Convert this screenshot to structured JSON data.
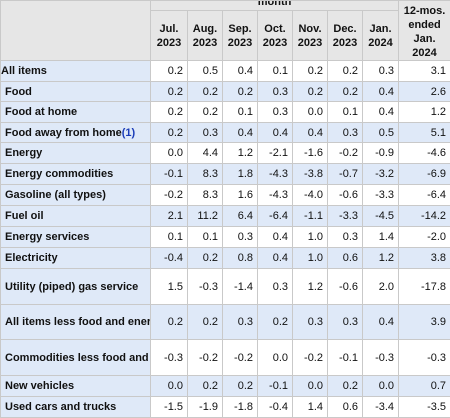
{
  "header": {
    "group_label": "month",
    "columns": [
      {
        "line1": "Jul.",
        "line2": "2023"
      },
      {
        "line1": "Aug.",
        "line2": "2023"
      },
      {
        "line1": "Sep.",
        "line2": "2023"
      },
      {
        "line1": "Oct.",
        "line2": "2023"
      },
      {
        "line1": "Nov.",
        "line2": "2023"
      },
      {
        "line1": "Dec.",
        "line2": "2023"
      },
      {
        "line1": "Jan.",
        "line2": "2024"
      }
    ],
    "annual_label": {
      "line1": "12-mos.",
      "line2": "ended",
      "line3": "Jan.",
      "line4": "2024"
    }
  },
  "rows": [
    {
      "label": "All items",
      "values": [
        "0.2",
        "0.5",
        "0.4",
        "0.1",
        "0.2",
        "0.2",
        "0.3",
        "3.1"
      ]
    },
    {
      "label": "Food",
      "values": [
        "0.2",
        "0.2",
        "0.2",
        "0.3",
        "0.2",
        "0.2",
        "0.4",
        "2.6"
      ]
    },
    {
      "label": "Food at home",
      "values": [
        "0.2",
        "0.2",
        "0.1",
        "0.3",
        "0.0",
        "0.1",
        "0.4",
        "1.2"
      ]
    },
    {
      "label": "Food away from home",
      "footnote": "(1)",
      "values": [
        "0.2",
        "0.3",
        "0.4",
        "0.4",
        "0.4",
        "0.3",
        "0.5",
        "5.1"
      ]
    },
    {
      "label": "Energy",
      "values": [
        "0.0",
        "4.4",
        "1.2",
        "-2.1",
        "-1.6",
        "-0.2",
        "-0.9",
        "-4.6"
      ]
    },
    {
      "label": "Energy commodities",
      "values": [
        "-0.1",
        "8.3",
        "1.8",
        "-4.3",
        "-3.8",
        "-0.7",
        "-3.2",
        "-6.9"
      ]
    },
    {
      "label": "Gasoline (all types)",
      "values": [
        "-0.2",
        "8.3",
        "1.6",
        "-4.3",
        "-4.0",
        "-0.6",
        "-3.3",
        "-6.4"
      ]
    },
    {
      "label": "Fuel oil",
      "values": [
        "2.1",
        "11.2",
        "6.4",
        "-6.4",
        "-1.1",
        "-3.3",
        "-4.5",
        "-14.2"
      ]
    },
    {
      "label": "Energy services",
      "values": [
        "0.1",
        "0.1",
        "0.3",
        "0.4",
        "1.0",
        "0.3",
        "1.4",
        "-2.0"
      ]
    },
    {
      "label": "Electricity",
      "values": [
        "-0.4",
        "0.2",
        "0.8",
        "0.4",
        "1.0",
        "0.6",
        "1.2",
        "3.8"
      ]
    },
    {
      "label": "Utility (piped) gas service",
      "values": [
        "1.5",
        "-0.3",
        "-1.4",
        "0.3",
        "1.2",
        "-0.6",
        "2.0",
        "-17.8"
      ]
    },
    {
      "label": "All items less food and energy",
      "values": [
        "0.2",
        "0.2",
        "0.3",
        "0.2",
        "0.3",
        "0.3",
        "0.4",
        "3.9"
      ]
    },
    {
      "label": "Commodities less food and energy commodities",
      "values": [
        "-0.3",
        "-0.2",
        "-0.2",
        "0.0",
        "-0.2",
        "-0.1",
        "-0.3",
        "-0.3"
      ]
    },
    {
      "label": "New vehicles",
      "values": [
        "0.0",
        "0.2",
        "0.2",
        "-0.1",
        "0.0",
        "0.2",
        "0.0",
        "0.7"
      ]
    },
    {
      "label": "Used cars and trucks",
      "values": [
        "-1.5",
        "-1.9",
        "-1.8",
        "-0.4",
        "1.4",
        "0.6",
        "-3.4",
        "-3.5"
      ]
    }
  ]
}
